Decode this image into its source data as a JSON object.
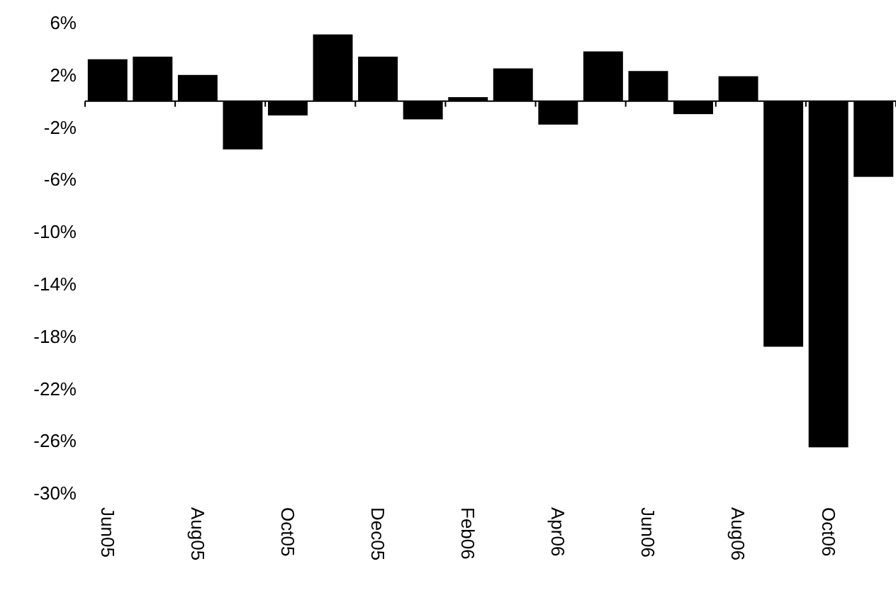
{
  "chart_data": {
    "type": "bar",
    "categories": [
      "Jun05",
      null,
      "Aug05",
      null,
      "Oct05",
      null,
      "Dec05",
      null,
      "Feb06",
      null,
      "Apr06",
      null,
      "Jun06",
      null,
      "Aug06",
      null,
      "Oct06",
      null
    ],
    "values": [
      3.2,
      3.4,
      2.0,
      -3.7,
      -1.1,
      5.1,
      3.4,
      -1.4,
      0.3,
      2.5,
      -1.8,
      3.8,
      2.3,
      -1.0,
      1.9,
      -18.8,
      -26.5,
      -5.8
    ],
    "color": "#000000",
    "ylim": [
      -30,
      6
    ],
    "yticks": [
      {
        "value": 6,
        "label": "6%"
      },
      {
        "value": 2,
        "label": "2%"
      },
      {
        "value": -2,
        "label": "-2%"
      },
      {
        "value": -6,
        "label": "-6%"
      },
      {
        "value": -10,
        "label": "-10%"
      },
      {
        "value": -14,
        "label": "-14%"
      },
      {
        "value": -18,
        "label": "-18%"
      },
      {
        "value": -22,
        "label": "-22%"
      },
      {
        "value": -26,
        "label": "-26%"
      },
      {
        "value": -30,
        "label": "-30%"
      }
    ],
    "grid": false
  }
}
